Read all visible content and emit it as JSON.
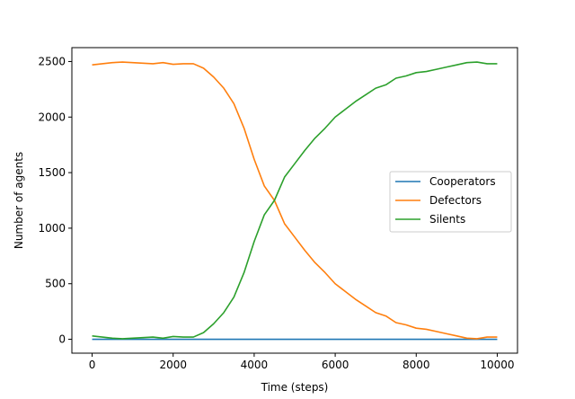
{
  "chart_data": {
    "type": "line",
    "title": "",
    "xlabel": "Time (steps)",
    "ylabel": "Number of agents",
    "xlim": [
      -500,
      10500
    ],
    "ylim": [
      -125,
      2625
    ],
    "xticks": [
      0,
      2000,
      4000,
      6000,
      8000,
      10000
    ],
    "yticks": [
      0,
      500,
      1000,
      1500,
      2000,
      2500
    ],
    "grid": false,
    "legend_position": "center-right",
    "series": [
      {
        "name": "Cooperators",
        "color": "#1f77b4",
        "x": [
          0,
          10000
        ],
        "y": [
          0,
          0
        ]
      },
      {
        "name": "Defectors",
        "color": "#ff7f0e",
        "x": [
          0,
          250,
          500,
          750,
          1000,
          1250,
          1500,
          1750,
          2000,
          2250,
          2500,
          2750,
          3000,
          3250,
          3500,
          3750,
          4000,
          4250,
          4500,
          4750,
          5000,
          5250,
          5500,
          5750,
          6000,
          6250,
          6500,
          6750,
          7000,
          7250,
          7500,
          7750,
          8000,
          8250,
          8500,
          8750,
          9000,
          9250,
          9500,
          9750,
          10000
        ],
        "y": [
          2470,
          2480,
          2490,
          2495,
          2490,
          2485,
          2480,
          2490,
          2475,
          2480,
          2480,
          2440,
          2360,
          2260,
          2120,
          1900,
          1620,
          1380,
          1250,
          1040,
          920,
          800,
          690,
          600,
          500,
          430,
          360,
          300,
          240,
          210,
          150,
          130,
          100,
          90,
          70,
          50,
          30,
          10,
          5,
          20,
          20
        ]
      },
      {
        "name": "Silents",
        "color": "#2ca02c",
        "x": [
          0,
          250,
          500,
          750,
          1000,
          1250,
          1500,
          1750,
          2000,
          2250,
          2500,
          2750,
          3000,
          3250,
          3500,
          3750,
          4000,
          4250,
          4500,
          4750,
          5000,
          5250,
          5500,
          5750,
          6000,
          6250,
          6500,
          6750,
          7000,
          7250,
          7500,
          7750,
          8000,
          8250,
          8500,
          8750,
          9000,
          9250,
          9500,
          9750,
          10000
        ],
        "y": [
          30,
          20,
          10,
          5,
          10,
          15,
          20,
          10,
          25,
          20,
          20,
          60,
          140,
          240,
          380,
          600,
          880,
          1120,
          1250,
          1460,
          1580,
          1700,
          1810,
          1900,
          2000,
          2070,
          2140,
          2200,
          2260,
          2290,
          2350,
          2370,
          2400,
          2410,
          2430,
          2450,
          2470,
          2490,
          2495,
          2480,
          2480
        ]
      }
    ]
  }
}
